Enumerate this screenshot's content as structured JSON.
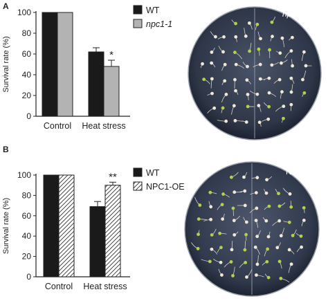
{
  "panels": [
    {
      "letter": "A",
      "plate_left_label": "WT",
      "plate_right_label": "npc1-1",
      "chart_data": {
        "type": "bar",
        "categories": [
          "Control",
          "Heat stress"
        ],
        "ylabel": "Survival rate (%)",
        "ylim": [
          0,
          100
        ],
        "yticks": [
          0,
          20,
          40,
          60,
          80,
          100
        ],
        "grid": false,
        "legend": "top-right",
        "series": [
          {
            "name": "WT",
            "values": [
              100,
              62
            ],
            "errors": [
              0,
              4
            ],
            "pattern": "solid",
            "color": "#1a1a1a"
          },
          {
            "name": "npc1-1",
            "values": [
              100,
              48
            ],
            "errors": [
              0,
              6
            ],
            "pattern": "gray",
            "color": "#b3b3b3"
          }
        ],
        "annotations": [
          {
            "series": 1,
            "category": 1,
            "text": "*"
          }
        ]
      }
    },
    {
      "letter": "B",
      "plate_left_label": "WT",
      "plate_right_label": "NPC1-OE",
      "chart_data": {
        "type": "bar",
        "categories": [
          "Control",
          "Heat stress"
        ],
        "ylabel": "Survival rate (%)",
        "ylim": [
          0,
          100
        ],
        "yticks": [
          0,
          20,
          40,
          60,
          80,
          100
        ],
        "grid": false,
        "legend": "top-right",
        "series": [
          {
            "name": "WT",
            "values": [
              100,
              69
            ],
            "errors": [
              0,
              5
            ],
            "pattern": "solid",
            "color": "#1a1a1a"
          },
          {
            "name": "NPC1-OE",
            "values": [
              100,
              90
            ],
            "errors": [
              0,
              3
            ],
            "pattern": "hatched",
            "color": "#ffffff"
          }
        ],
        "annotations": [
          {
            "series": 1,
            "category": 1,
            "text": "**"
          }
        ]
      }
    }
  ]
}
